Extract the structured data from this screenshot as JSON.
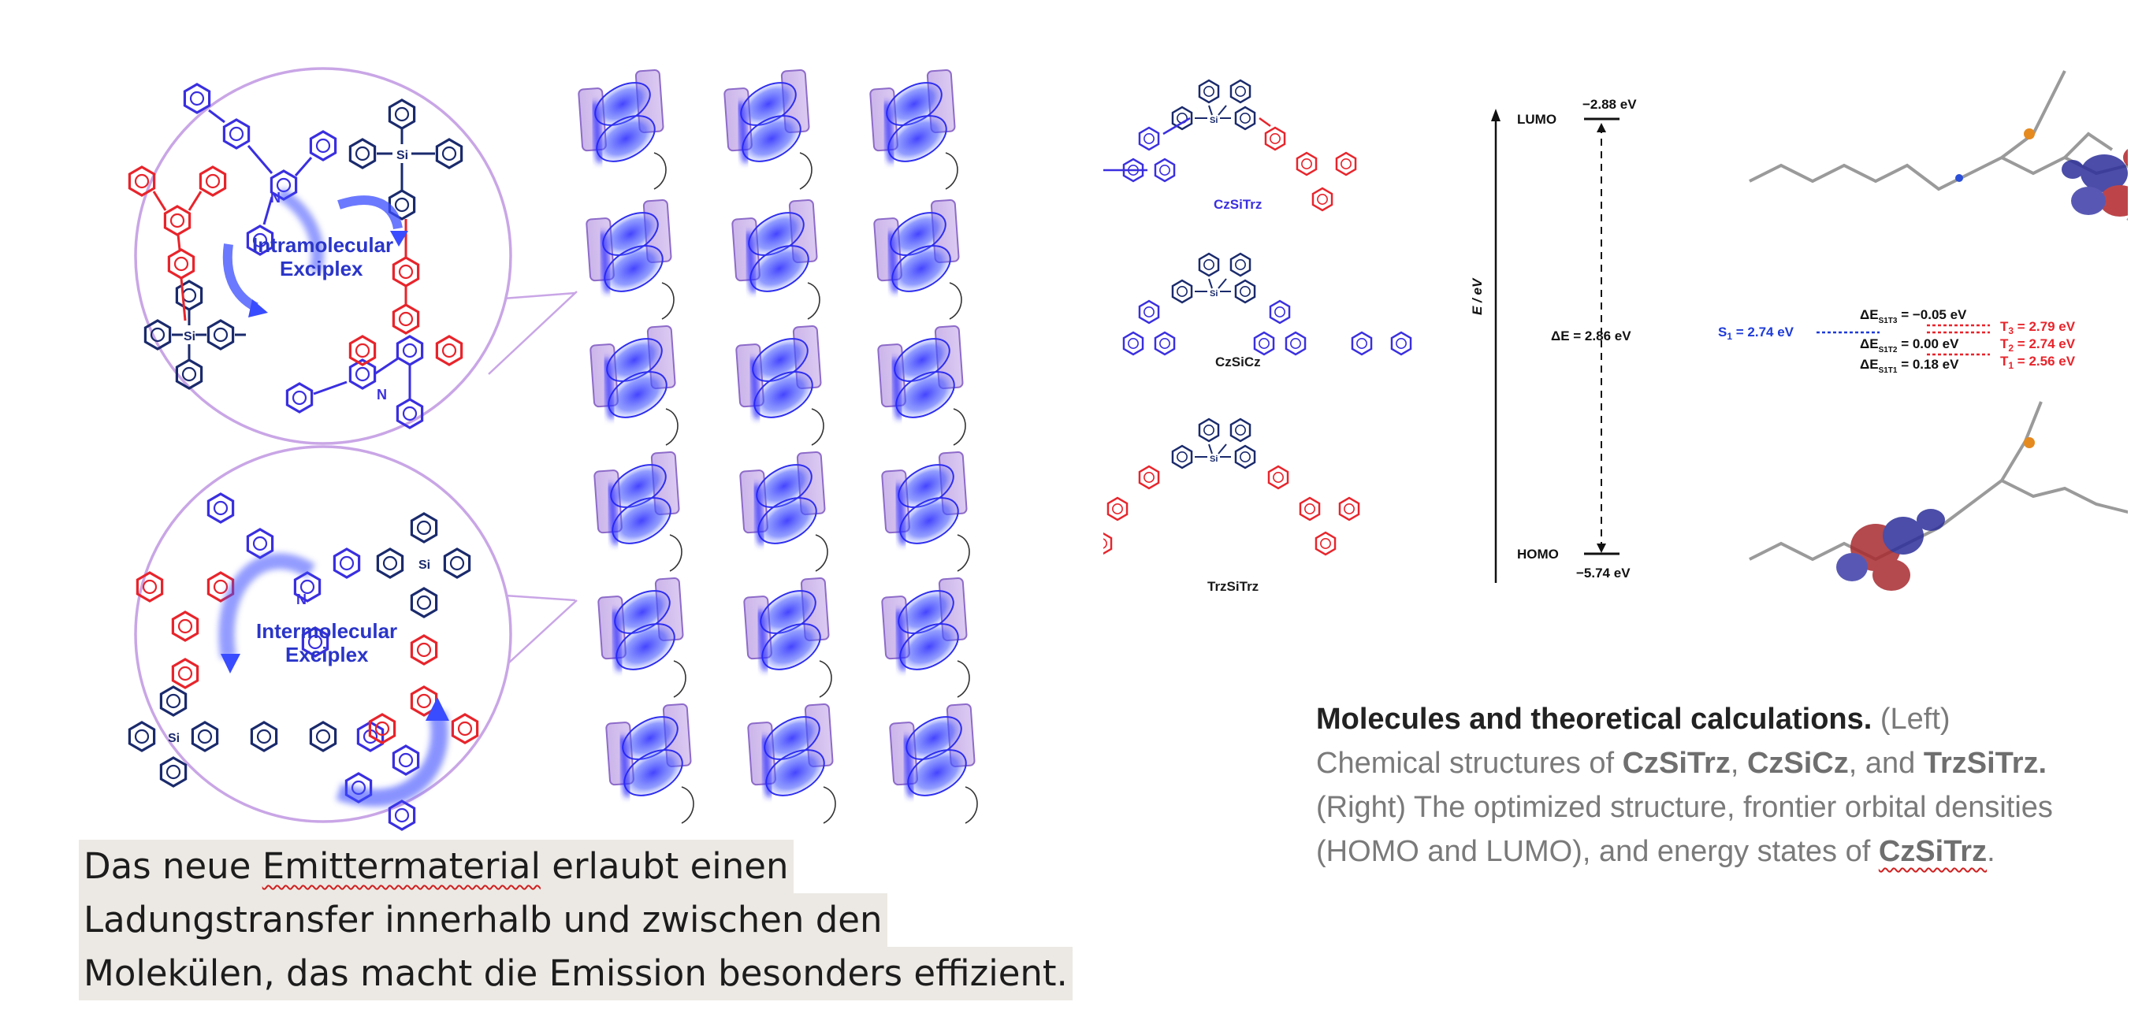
{
  "left_figure": {
    "intramolecular_label_1": "Intramolecular",
    "intramolecular_label_2": "Exciplex",
    "intermolecular_label_1": "Intermolecular",
    "intermolecular_label_2": "Exciplex",
    "atom_labels": {
      "silicon": "Si",
      "nitrogen": "N"
    },
    "colors": {
      "donor": "#3a2fe0",
      "acceptor": "#e8242b",
      "bridge": "#1a2a6c",
      "circle": "#c9a6e6"
    }
  },
  "german_caption": {
    "line1_a": "Das neue ",
    "line1_b": "Emittermaterial",
    "line1_c": " erlaubt einen",
    "line2": "Ladungstransfer innerhalb und zwischen den",
    "line3": "Molekülen, das macht die Emission besonders effizient."
  },
  "right_figure": {
    "molecules": [
      "CzSiTrz",
      "CzSiCz",
      "TrzSiTrz"
    ],
    "energy_diagram": {
      "axis_label": "E / eV",
      "lumo_label": "LUMO",
      "lumo_value": "−2.88 eV",
      "homo_label": "HOMO",
      "homo_value": "−5.74 eV",
      "gap": "ΔE = 2.86 eV",
      "s1": "S",
      "s1_sub": "1",
      "s1_val": " = 2.74 eV",
      "t3": "T",
      "t3_sub": "3",
      "t3_val": " = 2.79 eV",
      "t2": "T",
      "t2_sub": "2",
      "t2_val": " = 2.74 eV",
      "t1": "T",
      "t1_sub": "1",
      "t1_val": " = 2.56 eV",
      "dE_prefix": "ΔE",
      "dE_sub_1": "S1T3",
      "dE_val_1": " = −0.05 eV",
      "dE_sub_2": "S1T2",
      "dE_val_2": " = 0.00 eV",
      "dE_sub_3": "S1T1",
      "dE_val_3": " = 0.18 eV"
    }
  },
  "english_caption": {
    "heading": "Molecules and theoretical calculations.",
    "t1": " (Left) Chemical structures of ",
    "m1": "CzSiTrz",
    "t2": ", ",
    "m2": "CzSiCz",
    "t3": ", and ",
    "m3": "TrzSiTrz.",
    "t4": " (Right) The optimized structure, frontier orbital densities (HOMO and LUMO), and energy states of ",
    "m4": "CzSiTrz",
    "t5": "."
  }
}
